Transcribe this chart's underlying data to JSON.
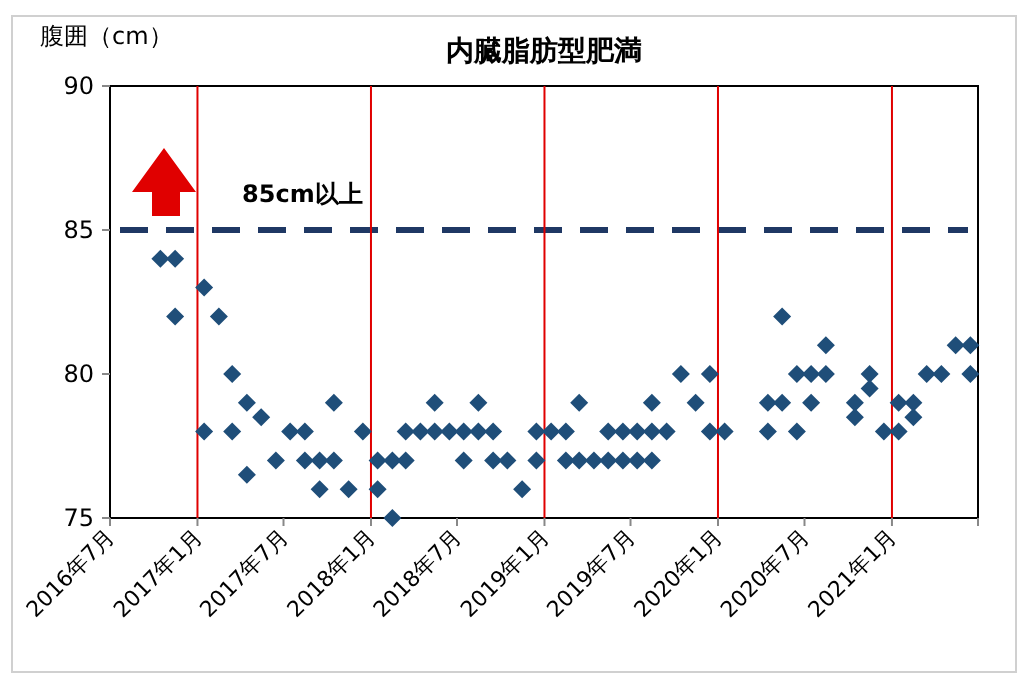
{
  "chart_data": {
    "type": "scatter",
    "title": "内臓脂肪型肥満",
    "ylabel": "腹囲（cm）",
    "xlim": [
      "2016-07",
      "2021-07"
    ],
    "xticks": [
      {
        "value": "2016-07",
        "label": "2016年7月"
      },
      {
        "value": "2017-01",
        "label": "2017年1月"
      },
      {
        "value": "2017-07",
        "label": "2017年7月"
      },
      {
        "value": "2018-01",
        "label": "2018年1月"
      },
      {
        "value": "2018-07",
        "label": "2018年7月"
      },
      {
        "value": "2019-01",
        "label": "2019年1月"
      },
      {
        "value": "2019-07",
        "label": "2019年7月"
      },
      {
        "value": "2020-01",
        "label": "2020年1月"
      },
      {
        "value": "2020-07",
        "label": "2020年7月"
      },
      {
        "value": "2021-01",
        "label": "2021年1月"
      },
      {
        "value": "2021-07",
        "label": null
      }
    ],
    "ylim": [
      75,
      90
    ],
    "yticks": [
      75,
      80,
      85,
      90
    ],
    "grid": false,
    "marker": "diamond",
    "ref_lines": [
      {
        "axis": "y",
        "value": 85,
        "label": "85cm以上",
        "color": "#1f3864",
        "line_style": "dashed"
      },
      {
        "axis": "x",
        "value": "2017-01",
        "label": null,
        "color": "#e00000",
        "line_style": "solid"
      },
      {
        "axis": "x",
        "value": "2018-01",
        "label": null,
        "color": "#e00000",
        "line_style": "solid"
      },
      {
        "axis": "x",
        "value": "2019-01",
        "label": null,
        "color": "#e00000",
        "line_style": "solid"
      },
      {
        "axis": "x",
        "value": "2020-01",
        "label": null,
        "color": "#e00000",
        "line_style": "solid"
      },
      {
        "axis": "x",
        "value": "2021-01",
        "label": null,
        "color": "#e00000",
        "line_style": "solid"
      }
    ],
    "series": [
      {
        "color": "#1f4e79",
        "x": [
          "2016-10-15",
          "2016-11-15",
          "2016-11-15",
          "2017-01-15",
          "2017-01-15",
          "2017-02-15",
          "2017-03-15",
          "2017-03-15",
          "2017-04-15",
          "2017-04-15",
          "2017-05-15",
          "2017-06-15",
          "2017-07-15",
          "2017-08-15",
          "2017-08-15",
          "2017-09-15",
          "2017-09-15",
          "2017-10-15",
          "2017-10-15",
          "2017-11-15",
          "2017-12-15",
          "2018-01-15",
          "2018-01-15",
          "2018-02-15",
          "2018-02-15",
          "2018-03-15",
          "2018-03-15",
          "2018-04-15",
          "2018-05-15",
          "2018-05-15",
          "2018-06-15",
          "2018-07-15",
          "2018-07-15",
          "2018-08-15",
          "2018-08-15",
          "2018-09-15",
          "2018-09-15",
          "2018-10-15",
          "2018-11-15",
          "2018-12-15",
          "2018-12-15",
          "2019-01-15",
          "2019-02-15",
          "2019-02-15",
          "2019-03-15",
          "2019-03-15",
          "2019-04-15",
          "2019-05-15",
          "2019-05-15",
          "2019-06-15",
          "2019-06-15",
          "2019-07-15",
          "2019-07-15",
          "2019-08-15",
          "2019-08-15",
          "2019-08-15",
          "2019-09-15",
          "2019-10-15",
          "2019-11-15",
          "2019-12-15",
          "2019-12-15",
          "2020-01-15",
          "2020-04-15",
          "2020-04-15",
          "2020-05-15",
          "2020-05-15",
          "2020-06-15",
          "2020-06-15",
          "2020-07-15",
          "2020-07-15",
          "2020-08-15",
          "2020-08-15",
          "2020-10-15",
          "2020-10-15",
          "2020-11-15",
          "2020-11-15",
          "2020-12-15",
          "2021-01-15",
          "2021-01-15",
          "2021-02-15",
          "2021-02-15",
          "2021-03-15",
          "2021-04-15",
          "2021-05-15",
          "2021-06-15",
          "2021-06-15"
        ],
        "values": [
          84,
          84,
          82,
          83,
          78,
          82,
          80,
          78,
          79,
          76.5,
          78.5,
          77,
          78,
          78,
          77,
          77,
          76,
          79,
          77,
          76,
          78,
          77,
          76,
          77,
          75,
          78,
          77,
          78,
          79,
          78,
          78,
          78,
          77,
          79,
          78,
          78,
          77,
          77,
          76,
          78,
          77,
          78,
          78,
          77,
          79,
          77,
          77,
          78,
          77,
          78,
          77,
          78,
          77,
          79,
          78,
          77,
          78,
          80,
          79,
          80,
          78,
          78,
          79,
          78,
          82,
          79,
          80,
          78,
          80,
          79,
          81,
          80,
          79,
          78.5,
          80,
          79.5,
          78,
          79,
          78,
          79,
          78.5,
          80,
          80,
          81,
          81,
          80
        ]
      }
    ]
  }
}
